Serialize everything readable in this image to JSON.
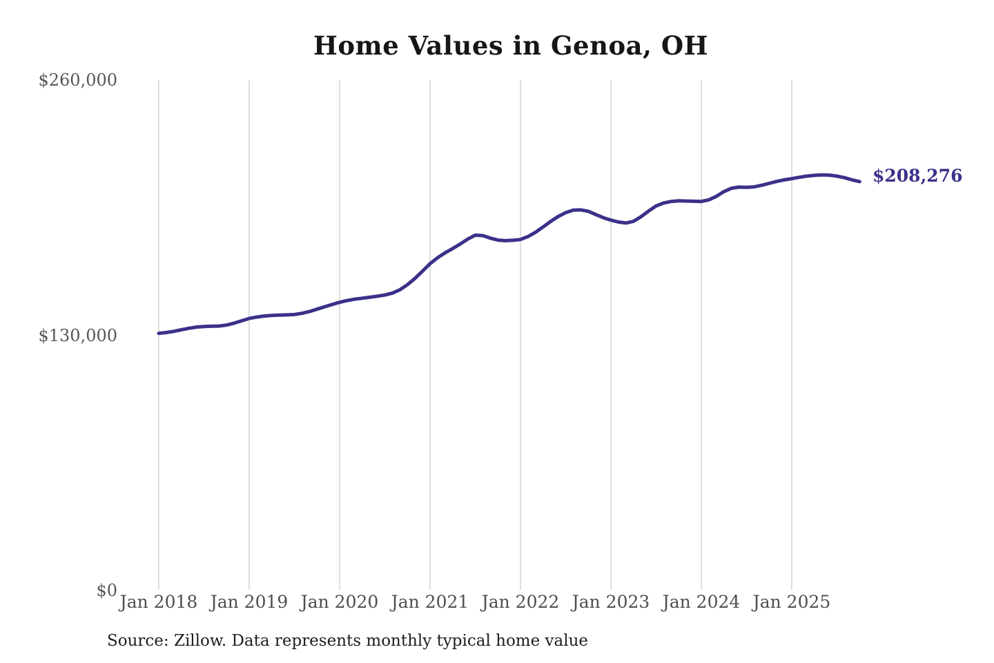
{
  "source_note": "Source: Zillow. Data represents monthly typical home value",
  "colors": {
    "line": "#3a3189",
    "grid": "#cccccc",
    "y_tick_label": "#565656",
    "x_tick_label": "#4e4e4e",
    "title": "#161616",
    "background": "#ffffff"
  },
  "chart_data": {
    "type": "line",
    "title": "Home Values in Genoa, OH",
    "xlabel": "",
    "ylabel": "",
    "ylim": [
      0,
      260000
    ],
    "grid": "vertical-only",
    "legend": "none",
    "y_ticks": [
      {
        "label": "$260,000",
        "value": 260000
      },
      {
        "label": "$130,000",
        "value": 130000
      },
      {
        "label": "$0",
        "value": 0
      }
    ],
    "x_ticks": [
      "Jan 2018",
      "Jan 2019",
      "Jan 2020",
      "Jan 2021",
      "Jan 2022",
      "Jan 2023",
      "Jan 2024",
      "Jan 2025"
    ],
    "months_per_tick": 12,
    "start_month": "Jan 2018",
    "end_month": "Oct 2025",
    "end_label": "$208,276",
    "final_value": 208276,
    "series": [
      {
        "name": "Monthly typical home value",
        "color": "#3a3189",
        "values": [
          131000,
          131400,
          132000,
          132800,
          133600,
          134200,
          134500,
          134600,
          134700,
          135200,
          136200,
          137400,
          138600,
          139300,
          139800,
          140100,
          140300,
          140400,
          140600,
          141200,
          142100,
          143300,
          144500,
          145700,
          146800,
          147700,
          148400,
          148900,
          149400,
          149900,
          150500,
          151500,
          153200,
          155800,
          159000,
          162700,
          166500,
          169500,
          172000,
          174200,
          176500,
          179000,
          181000,
          180800,
          179500,
          178500,
          178200,
          178400,
          178800,
          180300,
          182500,
          185200,
          188000,
          190500,
          192500,
          193800,
          193900,
          193200,
          191500,
          189900,
          188700,
          187700,
          187200,
          188100,
          190400,
          193300,
          195900,
          197400,
          198200,
          198500,
          198400,
          198300,
          198200,
          199000,
          200800,
          203200,
          204900,
          205500,
          205400,
          205600,
          206400,
          207400,
          208400,
          209200,
          209800,
          210500,
          211100,
          211500,
          211700,
          211600,
          211100,
          210300,
          209200,
          208276
        ]
      }
    ]
  }
}
